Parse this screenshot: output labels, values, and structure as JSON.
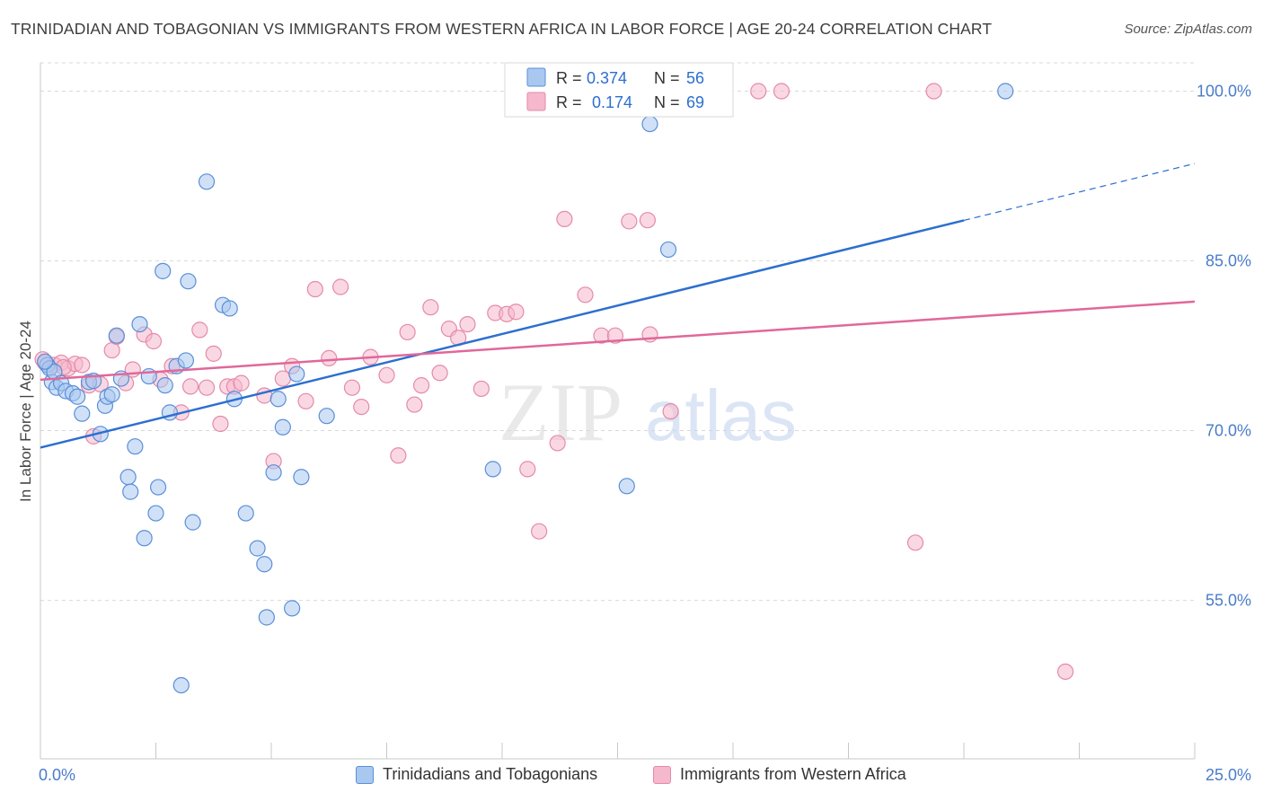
{
  "title": "TRINIDADIAN AND TOBAGONIAN VS IMMIGRANTS FROM WESTERN AFRICA IN LABOR FORCE | AGE 20-24 CORRELATION CHART",
  "source": "Source: ZipAtlas.com",
  "watermark": {
    "zip": "ZIP",
    "atlas": "atlas"
  },
  "colors": {
    "blue_fill": "#a9c8f0",
    "blue_stroke": "#5a8fd8",
    "blue_line": "#2c6fcf",
    "pink_fill": "#f6b8cc",
    "pink_stroke": "#e58aa8",
    "pink_line": "#e0689a",
    "tick_label": "#4a7cc9",
    "grid": "#d9d9d9"
  },
  "legend": {
    "rows": [
      {
        "r_label": "R =",
        "r_value": "0.374",
        "n_label": "N =",
        "n_value": "56"
      },
      {
        "r_label": "R =",
        "r_value": "0.174",
        "n_label": "N =",
        "n_value": "69"
      }
    ]
  },
  "bottom_legend": [
    "Trinidadians and Tobagonians",
    "Immigrants from Western Africa"
  ],
  "chart_data": {
    "type": "scatter",
    "xlabel": "",
    "ylabel": "In Labor Force | Age 20-24",
    "xlim": [
      0,
      25
    ],
    "ylim": [
      41,
      102.5
    ],
    "x_tick_labels": [
      "0.0%",
      "25.0%"
    ],
    "y_ticks": [
      55,
      70,
      85,
      100
    ],
    "y_tick_labels": [
      "55.0%",
      "70.0%",
      "85.0%",
      "100.0%"
    ],
    "grid": true,
    "legend_position": "top-center",
    "series": [
      {
        "name": "Trinidadians and Tobagonians",
        "r": 0.374,
        "n": 56,
        "trend": {
          "x0": 0,
          "y0": 68.5,
          "x1": 25,
          "y1": 93.6,
          "solid_until_x": 20
        },
        "points": [
          [
            0.15,
            75.8
          ],
          [
            0.2,
            75.5
          ],
          [
            0.25,
            74.3
          ],
          [
            0.3,
            75.2
          ],
          [
            0.35,
            73.8
          ],
          [
            0.45,
            74.2
          ],
          [
            0.55,
            73.5
          ],
          [
            0.7,
            73.3
          ],
          [
            0.8,
            73.0
          ],
          [
            0.9,
            71.5
          ],
          [
            1.05,
            74.3
          ],
          [
            1.15,
            74.4
          ],
          [
            1.3,
            69.7
          ],
          [
            1.4,
            72.2
          ],
          [
            1.45,
            73.0
          ],
          [
            1.55,
            73.2
          ],
          [
            1.65,
            78.4
          ],
          [
            1.75,
            74.6
          ],
          [
            1.9,
            65.9
          ],
          [
            1.95,
            64.6
          ],
          [
            2.05,
            68.6
          ],
          [
            2.15,
            79.4
          ],
          [
            2.25,
            60.5
          ],
          [
            2.35,
            74.8
          ],
          [
            2.5,
            62.7
          ],
          [
            2.55,
            65.0
          ],
          [
            2.65,
            84.1
          ],
          [
            2.7,
            74.0
          ],
          [
            2.8,
            71.6
          ],
          [
            2.95,
            75.7
          ],
          [
            3.05,
            47.5
          ],
          [
            3.15,
            76.2
          ],
          [
            3.2,
            83.2
          ],
          [
            3.3,
            61.9
          ],
          [
            3.6,
            92.0
          ],
          [
            3.95,
            81.1
          ],
          [
            4.1,
            80.8
          ],
          [
            4.2,
            72.8
          ],
          [
            4.45,
            62.7
          ],
          [
            4.7,
            59.6
          ],
          [
            4.85,
            58.2
          ],
          [
            4.9,
            53.5
          ],
          [
            5.05,
            66.3
          ],
          [
            5.15,
            72.8
          ],
          [
            5.25,
            70.3
          ],
          [
            5.45,
            54.3
          ],
          [
            5.55,
            75.0
          ],
          [
            5.65,
            65.9
          ],
          [
            6.2,
            71.3
          ],
          [
            9.8,
            66.6
          ],
          [
            11.2,
            100.0
          ],
          [
            12.7,
            65.1
          ],
          [
            13.2,
            97.1
          ],
          [
            13.6,
            86.0
          ],
          [
            20.9,
            100.0
          ],
          [
            0.1,
            76.1
          ]
        ]
      },
      {
        "name": "Immigrants from Western Africa",
        "r": 0.174,
        "n": 69,
        "trend": {
          "x0": 0,
          "y0": 74.5,
          "x1": 25,
          "y1": 81.4
        },
        "points": [
          [
            0.1,
            76.0
          ],
          [
            0.3,
            75.8
          ],
          [
            0.45,
            76.0
          ],
          [
            0.6,
            75.5
          ],
          [
            0.75,
            75.9
          ],
          [
            0.9,
            75.8
          ],
          [
            1.05,
            74.0
          ],
          [
            1.15,
            69.5
          ],
          [
            1.3,
            74.1
          ],
          [
            1.55,
            77.1
          ],
          [
            1.65,
            78.3
          ],
          [
            1.85,
            74.2
          ],
          [
            2.0,
            75.4
          ],
          [
            2.25,
            78.5
          ],
          [
            2.45,
            77.9
          ],
          [
            2.6,
            74.5
          ],
          [
            2.85,
            75.7
          ],
          [
            3.05,
            71.6
          ],
          [
            3.25,
            73.9
          ],
          [
            3.45,
            78.9
          ],
          [
            3.6,
            73.8
          ],
          [
            3.75,
            76.8
          ],
          [
            3.9,
            70.6
          ],
          [
            4.05,
            73.9
          ],
          [
            4.2,
            73.9
          ],
          [
            4.35,
            74.2
          ],
          [
            4.85,
            73.1
          ],
          [
            5.05,
            67.3
          ],
          [
            5.25,
            74.6
          ],
          [
            5.45,
            75.7
          ],
          [
            5.75,
            72.6
          ],
          [
            5.95,
            82.5
          ],
          [
            6.25,
            76.4
          ],
          [
            6.5,
            82.7
          ],
          [
            6.75,
            73.8
          ],
          [
            6.95,
            72.1
          ],
          [
            7.15,
            76.5
          ],
          [
            7.5,
            74.9
          ],
          [
            7.75,
            67.8
          ],
          [
            7.95,
            78.7
          ],
          [
            8.25,
            74.0
          ],
          [
            8.45,
            80.9
          ],
          [
            8.65,
            75.1
          ],
          [
            8.85,
            79.0
          ],
          [
            9.05,
            78.2
          ],
          [
            9.25,
            79.4
          ],
          [
            9.55,
            73.7
          ],
          [
            9.85,
            80.4
          ],
          [
            10.1,
            80.3
          ],
          [
            10.3,
            80.5
          ],
          [
            10.55,
            66.6
          ],
          [
            10.8,
            61.1
          ],
          [
            11.2,
            68.9
          ],
          [
            11.35,
            88.7
          ],
          [
            11.8,
            82.0
          ],
          [
            12.15,
            78.4
          ],
          [
            12.45,
            78.4
          ],
          [
            12.75,
            88.5
          ],
          [
            13.15,
            88.6
          ],
          [
            13.2,
            78.5
          ],
          [
            13.65,
            71.7
          ],
          [
            15.55,
            100.0
          ],
          [
            16.05,
            100.0
          ],
          [
            18.95,
            60.1
          ],
          [
            19.35,
            100.0
          ],
          [
            22.2,
            48.7
          ],
          [
            0.05,
            76.3
          ],
          [
            0.5,
            75.6
          ],
          [
            8.1,
            72.3
          ]
        ]
      }
    ]
  }
}
